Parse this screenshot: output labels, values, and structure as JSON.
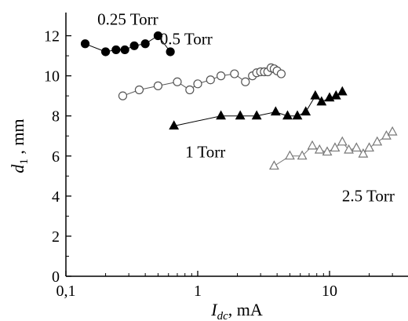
{
  "chart_data": {
    "type": "scatter",
    "x_scale": "log",
    "xlabel_main": "I",
    "xlabel_sub": "dc",
    "xlabel_unit": ", mA",
    "ylabel_main": "d",
    "ylabel_sub": "1",
    "ylabel_unit": " , mm",
    "xlim": [
      0.1,
      30
    ],
    "ylim": [
      0,
      13
    ],
    "x_ticks": [
      {
        "value": 0.1,
        "label": "0,1"
      },
      {
        "value": 1,
        "label": "1"
      },
      {
        "value": 10,
        "label": "10"
      }
    ],
    "y_ticks": [
      {
        "value": 0,
        "label": "0"
      },
      {
        "value": 2,
        "label": "2"
      },
      {
        "value": 4,
        "label": "4"
      },
      {
        "value": 6,
        "label": "6"
      },
      {
        "value": 8,
        "label": "8"
      },
      {
        "value": 10,
        "label": "10"
      },
      {
        "value": 12,
        "label": "12"
      }
    ],
    "grid": false,
    "series": [
      {
        "name": "0.25 Torr",
        "marker": "filled-circle",
        "color": "#000000",
        "label_pos": "above",
        "points": [
          [
            0.14,
            11.6
          ],
          [
            0.2,
            11.2
          ],
          [
            0.24,
            11.3
          ],
          [
            0.28,
            11.3
          ],
          [
            0.33,
            11.5
          ],
          [
            0.4,
            11.6
          ],
          [
            0.5,
            12.0
          ],
          [
            0.62,
            11.2
          ]
        ]
      },
      {
        "name": "0.5 Torr",
        "marker": "open-circle",
        "color": "#555555",
        "label_pos": "above-right",
        "points": [
          [
            0.27,
            9.0
          ],
          [
            0.36,
            9.3
          ],
          [
            0.5,
            9.5
          ],
          [
            0.7,
            9.7
          ],
          [
            0.87,
            9.3
          ],
          [
            1.0,
            9.6
          ],
          [
            1.25,
            9.8
          ],
          [
            1.5,
            10.0
          ],
          [
            1.9,
            10.1
          ],
          [
            2.3,
            9.7
          ],
          [
            2.6,
            10.0
          ],
          [
            2.8,
            10.15
          ],
          [
            3.0,
            10.2
          ],
          [
            3.2,
            10.2
          ],
          [
            3.4,
            10.2
          ],
          [
            3.6,
            10.4
          ],
          [
            3.8,
            10.35
          ],
          [
            4.0,
            10.25
          ],
          [
            4.3,
            10.1
          ]
        ]
      },
      {
        "name": "1 Torr",
        "marker": "filled-triangle",
        "color": "#000000",
        "label_pos": "below",
        "points": [
          [
            0.66,
            7.5
          ],
          [
            1.5,
            8.0
          ],
          [
            2.1,
            8.0
          ],
          [
            2.8,
            8.0
          ],
          [
            3.9,
            8.2
          ],
          [
            4.8,
            8.0
          ],
          [
            5.7,
            8.0
          ],
          [
            6.6,
            8.2
          ],
          [
            7.8,
            9.0
          ],
          [
            8.7,
            8.7
          ],
          [
            10.0,
            8.9
          ],
          [
            11.2,
            9.0
          ],
          [
            12.5,
            9.2
          ]
        ]
      },
      {
        "name": "2.5 Torr",
        "marker": "open-triangle",
        "color": "#777777",
        "label_pos": "below-right",
        "points": [
          [
            3.8,
            5.5
          ],
          [
            5.0,
            6.0
          ],
          [
            6.2,
            6.0
          ],
          [
            7.4,
            6.5
          ],
          [
            8.4,
            6.3
          ],
          [
            9.6,
            6.2
          ],
          [
            11.0,
            6.4
          ],
          [
            12.5,
            6.7
          ],
          [
            14.0,
            6.3
          ],
          [
            16.0,
            6.4
          ],
          [
            18.0,
            6.1
          ],
          [
            20.0,
            6.4
          ],
          [
            23.0,
            6.7
          ],
          [
            27.0,
            7.0
          ],
          [
            30.0,
            7.2
          ]
        ]
      }
    ]
  }
}
